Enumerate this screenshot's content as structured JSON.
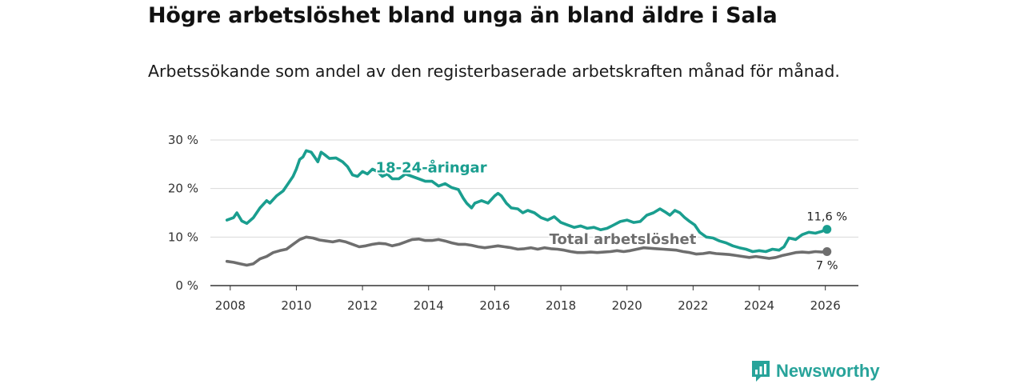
{
  "title": "Högre arbetslöshet bland unga än bland äldre i Sala",
  "subtitle": "Arbetssökande som andel av den registerbaserade arbetskraften månad för månad.",
  "brand": {
    "name": "Newsworthy",
    "color": "#27a39a"
  },
  "chart_data": {
    "type": "line",
    "title": "Högre arbetslöshet bland unga än bland äldre i Sala",
    "subtitle": "Arbetssökande som andel av den registerbaserade arbetskraften månad för månad.",
    "xlabel": "",
    "ylabel": "",
    "xlim": [
      2007.4,
      2027.0
    ],
    "ylim": [
      0,
      30
    ],
    "y_ticks": [
      0,
      10,
      20,
      30
    ],
    "y_tick_labels": [
      "0 %",
      "10 %",
      "20 %",
      "30 %"
    ],
    "x_ticks": [
      2008,
      2010,
      2012,
      2014,
      2016,
      2018,
      2020,
      2022,
      2024,
      2026
    ],
    "x_tick_labels": [
      "2008",
      "2010",
      "2012",
      "2014",
      "2016",
      "2018",
      "2020",
      "2022",
      "2024",
      "2026"
    ],
    "grid": true,
    "legend": "inline labels",
    "series": [
      {
        "name": "18-24-åringar",
        "color": "#1a9e8f",
        "end_label": "11,6 %",
        "points": [
          [
            2007.9,
            13.5
          ],
          [
            2008.1,
            14.0
          ],
          [
            2008.2,
            15.0
          ],
          [
            2008.35,
            13.3
          ],
          [
            2008.5,
            12.8
          ],
          [
            2008.7,
            14.0
          ],
          [
            2008.9,
            16.0
          ],
          [
            2009.1,
            17.5
          ],
          [
            2009.2,
            17.0
          ],
          [
            2009.4,
            18.5
          ],
          [
            2009.6,
            19.5
          ],
          [
            2009.75,
            21.0
          ],
          [
            2009.9,
            22.5
          ],
          [
            2010.0,
            24.0
          ],
          [
            2010.1,
            26.0
          ],
          [
            2010.2,
            26.5
          ],
          [
            2010.3,
            27.8
          ],
          [
            2010.45,
            27.5
          ],
          [
            2010.55,
            26.5
          ],
          [
            2010.65,
            25.5
          ],
          [
            2010.75,
            27.5
          ],
          [
            2010.85,
            27.0
          ],
          [
            2011.0,
            26.2
          ],
          [
            2011.2,
            26.3
          ],
          [
            2011.4,
            25.5
          ],
          [
            2011.55,
            24.5
          ],
          [
            2011.7,
            22.8
          ],
          [
            2011.85,
            22.5
          ],
          [
            2012.0,
            23.5
          ],
          [
            2012.15,
            23.0
          ],
          [
            2012.3,
            24.0
          ],
          [
            2012.45,
            23.5
          ],
          [
            2012.6,
            22.5
          ],
          [
            2012.75,
            23.0
          ],
          [
            2012.9,
            22.0
          ],
          [
            2013.1,
            22.0
          ],
          [
            2013.3,
            23.0
          ],
          [
            2013.5,
            22.5
          ],
          [
            2013.7,
            22.0
          ],
          [
            2013.9,
            21.5
          ],
          [
            2014.1,
            21.5
          ],
          [
            2014.3,
            20.5
          ],
          [
            2014.5,
            21.0
          ],
          [
            2014.7,
            20.2
          ],
          [
            2014.9,
            19.8
          ],
          [
            2015.05,
            18.0
          ],
          [
            2015.15,
            17.0
          ],
          [
            2015.3,
            16.0
          ],
          [
            2015.4,
            17.0
          ],
          [
            2015.6,
            17.5
          ],
          [
            2015.8,
            17.0
          ],
          [
            2016.0,
            18.5
          ],
          [
            2016.1,
            19.0
          ],
          [
            2016.2,
            18.5
          ],
          [
            2016.35,
            17.0
          ],
          [
            2016.5,
            16.0
          ],
          [
            2016.7,
            15.8
          ],
          [
            2016.85,
            15.0
          ],
          [
            2017.0,
            15.5
          ],
          [
            2017.2,
            15.0
          ],
          [
            2017.4,
            14.0
          ],
          [
            2017.6,
            13.5
          ],
          [
            2017.8,
            14.2
          ],
          [
            2018.0,
            13.0
          ],
          [
            2018.2,
            12.5
          ],
          [
            2018.4,
            12.0
          ],
          [
            2018.6,
            12.3
          ],
          [
            2018.8,
            11.8
          ],
          [
            2019.0,
            12.0
          ],
          [
            2019.2,
            11.5
          ],
          [
            2019.4,
            11.8
          ],
          [
            2019.6,
            12.5
          ],
          [
            2019.8,
            13.2
          ],
          [
            2020.0,
            13.5
          ],
          [
            2020.2,
            13.0
          ],
          [
            2020.4,
            13.2
          ],
          [
            2020.6,
            14.5
          ],
          [
            2020.8,
            15.0
          ],
          [
            2021.0,
            15.8
          ],
          [
            2021.15,
            15.2
          ],
          [
            2021.3,
            14.5
          ],
          [
            2021.45,
            15.5
          ],
          [
            2021.6,
            15.0
          ],
          [
            2021.75,
            14.0
          ],
          [
            2021.9,
            13.2
          ],
          [
            2022.05,
            12.5
          ],
          [
            2022.2,
            11.0
          ],
          [
            2022.4,
            10.0
          ],
          [
            2022.6,
            9.8
          ],
          [
            2022.8,
            9.2
          ],
          [
            2023.0,
            8.8
          ],
          [
            2023.2,
            8.2
          ],
          [
            2023.4,
            7.8
          ],
          [
            2023.6,
            7.5
          ],
          [
            2023.8,
            7.0
          ],
          [
            2024.0,
            7.2
          ],
          [
            2024.2,
            7.0
          ],
          [
            2024.4,
            7.5
          ],
          [
            2024.6,
            7.3
          ],
          [
            2024.75,
            8.0
          ],
          [
            2024.9,
            9.8
          ],
          [
            2025.1,
            9.5
          ],
          [
            2025.3,
            10.5
          ],
          [
            2025.5,
            11.0
          ],
          [
            2025.7,
            10.8
          ],
          [
            2025.9,
            11.2
          ],
          [
            2026.05,
            11.6
          ]
        ]
      },
      {
        "name": "Total arbetslöshet",
        "color": "#6e6e6e",
        "end_label": "7 %",
        "points": [
          [
            2007.9,
            5.0
          ],
          [
            2008.1,
            4.8
          ],
          [
            2008.3,
            4.5
          ],
          [
            2008.5,
            4.2
          ],
          [
            2008.7,
            4.5
          ],
          [
            2008.9,
            5.5
          ],
          [
            2009.1,
            6.0
          ],
          [
            2009.3,
            6.8
          ],
          [
            2009.5,
            7.2
          ],
          [
            2009.7,
            7.5
          ],
          [
            2009.9,
            8.5
          ],
          [
            2010.1,
            9.5
          ],
          [
            2010.3,
            10.0
          ],
          [
            2010.5,
            9.8
          ],
          [
            2010.7,
            9.4
          ],
          [
            2010.9,
            9.2
          ],
          [
            2011.1,
            9.0
          ],
          [
            2011.3,
            9.3
          ],
          [
            2011.5,
            9.0
          ],
          [
            2011.7,
            8.5
          ],
          [
            2011.9,
            8.0
          ],
          [
            2012.1,
            8.2
          ],
          [
            2012.3,
            8.5
          ],
          [
            2012.5,
            8.7
          ],
          [
            2012.7,
            8.6
          ],
          [
            2012.9,
            8.2
          ],
          [
            2013.1,
            8.5
          ],
          [
            2013.3,
            9.0
          ],
          [
            2013.5,
            9.5
          ],
          [
            2013.7,
            9.6
          ],
          [
            2013.9,
            9.3
          ],
          [
            2014.1,
            9.3
          ],
          [
            2014.3,
            9.5
          ],
          [
            2014.5,
            9.2
          ],
          [
            2014.7,
            8.8
          ],
          [
            2014.9,
            8.5
          ],
          [
            2015.1,
            8.5
          ],
          [
            2015.3,
            8.3
          ],
          [
            2015.5,
            8.0
          ],
          [
            2015.7,
            7.8
          ],
          [
            2015.9,
            8.0
          ],
          [
            2016.1,
            8.2
          ],
          [
            2016.3,
            8.0
          ],
          [
            2016.5,
            7.8
          ],
          [
            2016.7,
            7.5
          ],
          [
            2016.9,
            7.6
          ],
          [
            2017.1,
            7.8
          ],
          [
            2017.3,
            7.5
          ],
          [
            2017.5,
            7.8
          ],
          [
            2017.7,
            7.6
          ],
          [
            2017.9,
            7.5
          ],
          [
            2018.1,
            7.3
          ],
          [
            2018.3,
            7.0
          ],
          [
            2018.5,
            6.8
          ],
          [
            2018.7,
            6.8
          ],
          [
            2018.9,
            6.9
          ],
          [
            2019.1,
            6.8
          ],
          [
            2019.3,
            6.9
          ],
          [
            2019.5,
            7.0
          ],
          [
            2019.7,
            7.2
          ],
          [
            2019.9,
            7.0
          ],
          [
            2020.1,
            7.2
          ],
          [
            2020.3,
            7.5
          ],
          [
            2020.5,
            7.8
          ],
          [
            2020.7,
            7.7
          ],
          [
            2020.9,
            7.6
          ],
          [
            2021.1,
            7.5
          ],
          [
            2021.3,
            7.4
          ],
          [
            2021.5,
            7.3
          ],
          [
            2021.7,
            7.0
          ],
          [
            2021.9,
            6.8
          ],
          [
            2022.1,
            6.5
          ],
          [
            2022.3,
            6.6
          ],
          [
            2022.5,
            6.8
          ],
          [
            2022.7,
            6.6
          ],
          [
            2022.9,
            6.5
          ],
          [
            2023.1,
            6.4
          ],
          [
            2023.3,
            6.2
          ],
          [
            2023.5,
            6.0
          ],
          [
            2023.7,
            5.8
          ],
          [
            2023.9,
            6.0
          ],
          [
            2024.1,
            5.8
          ],
          [
            2024.3,
            5.6
          ],
          [
            2024.5,
            5.8
          ],
          [
            2024.7,
            6.2
          ],
          [
            2024.9,
            6.5
          ],
          [
            2025.1,
            6.8
          ],
          [
            2025.3,
            6.9
          ],
          [
            2025.5,
            6.8
          ],
          [
            2025.7,
            7.0
          ],
          [
            2025.9,
            6.9
          ],
          [
            2026.05,
            7.0
          ]
        ]
      }
    ],
    "inline_labels": [
      {
        "series": 0,
        "text": "18-24-åringar",
        "anchor": [
          2012.4,
          23.3
        ]
      },
      {
        "series": 1,
        "text": "Total arbetslöshet",
        "anchor": [
          2017.65,
          8.6
        ]
      }
    ]
  }
}
